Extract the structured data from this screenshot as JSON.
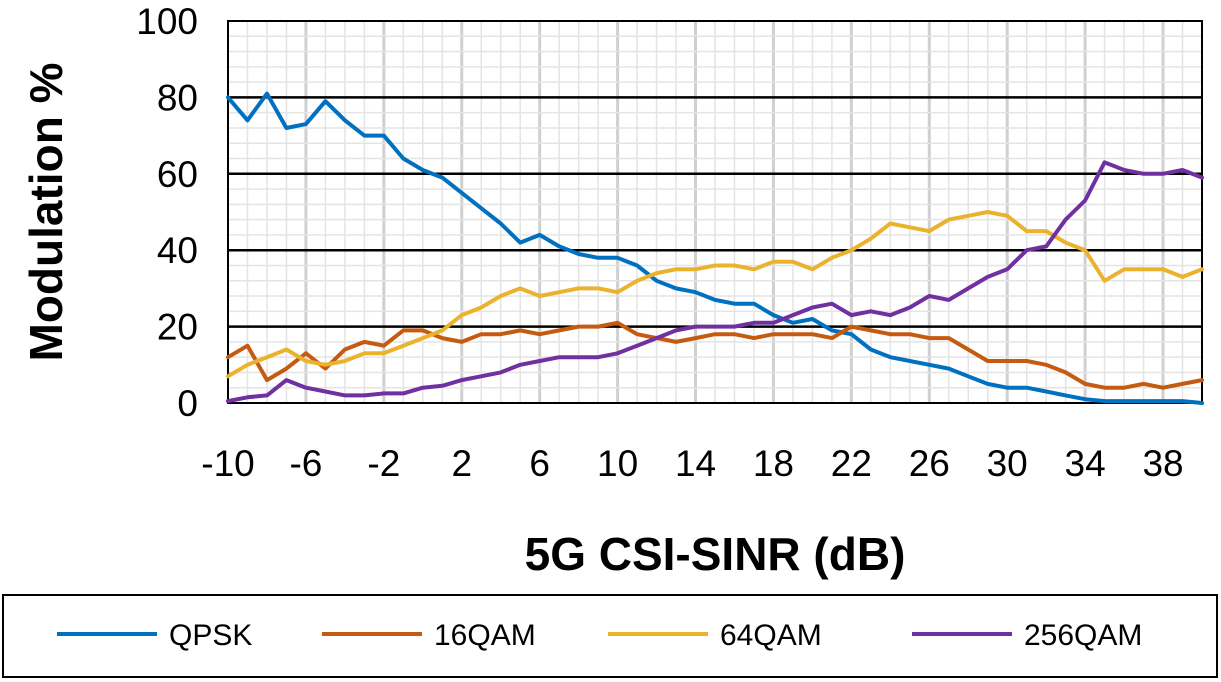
{
  "chart_data": {
    "type": "line",
    "title": "",
    "xlabel": "5G CSI-SINR (dB)",
    "ylabel": "Modulation %",
    "xlim": [
      -10,
      40
    ],
    "ylim": [
      0,
      100
    ],
    "x_ticks": [
      -10,
      -6,
      -2,
      2,
      6,
      10,
      14,
      18,
      22,
      26,
      30,
      34,
      38
    ],
    "x_tick_labels": [
      "-10",
      "-6",
      "-2",
      "2",
      "6",
      "10",
      "14",
      "18",
      "22",
      "26",
      "30",
      "34",
      "38"
    ],
    "y_ticks": [
      0,
      20,
      40,
      60,
      80,
      100
    ],
    "y_tick_labels": [
      "0",
      "20",
      "40",
      "60",
      "80",
      "100"
    ],
    "grid": {
      "major_y": true,
      "minor": true
    },
    "legend_position": "bottom",
    "x": [
      -10,
      -9,
      -8,
      -7,
      -6,
      -5,
      -4,
      -3,
      -2,
      -1,
      0,
      1,
      2,
      3,
      4,
      5,
      6,
      7,
      8,
      9,
      10,
      11,
      12,
      13,
      14,
      15,
      16,
      17,
      18,
      19,
      20,
      21,
      22,
      23,
      24,
      25,
      26,
      27,
      28,
      29,
      30,
      31,
      32,
      33,
      34,
      35,
      36,
      37,
      38,
      39,
      40
    ],
    "series": [
      {
        "name": "QPSK",
        "color": "#0070C0",
        "values": [
          80,
          74,
          81,
          72,
          73,
          79,
          74,
          70,
          70,
          64,
          61,
          59,
          55,
          51,
          47,
          42,
          44,
          41,
          39,
          38,
          38,
          36,
          32,
          30,
          29,
          27,
          26,
          26,
          23,
          21,
          22,
          19,
          18,
          14,
          12,
          11,
          10,
          9,
          7,
          5,
          4,
          4,
          3,
          2,
          1,
          0.5,
          0.5,
          0.5,
          0.5,
          0.5,
          0
        ]
      },
      {
        "name": "16QAM",
        "color": "#C55A11",
        "values": [
          12,
          15,
          6,
          9,
          13,
          9,
          14,
          16,
          15,
          19,
          19,
          17,
          16,
          18,
          18,
          19,
          18,
          19,
          20,
          20,
          21,
          18,
          17,
          16,
          17,
          18,
          18,
          17,
          18,
          18,
          18,
          17,
          20,
          19,
          18,
          18,
          17,
          17,
          14,
          11,
          11,
          11,
          10,
          8,
          5,
          4,
          4,
          5,
          4,
          5,
          6
        ]
      },
      {
        "name": "64QAM",
        "color": "#EBB22E",
        "values": [
          7,
          10,
          12,
          14,
          11,
          10,
          11,
          13,
          13,
          15,
          17,
          19,
          23,
          25,
          28,
          30,
          28,
          29,
          30,
          30,
          29,
          32,
          34,
          35,
          35,
          36,
          36,
          35,
          37,
          37,
          35,
          38,
          40,
          43,
          47,
          46,
          45,
          48,
          49,
          50,
          49,
          45,
          45,
          42,
          40,
          32,
          35,
          35,
          35,
          33,
          35
        ]
      },
      {
        "name": "256QAM",
        "color": "#7030A0",
        "values": [
          0.5,
          1.5,
          2,
          6,
          4,
          3,
          2,
          2,
          2.5,
          2.5,
          4,
          4.5,
          6,
          7,
          8,
          10,
          11,
          12,
          12,
          12,
          13,
          15,
          17,
          19,
          20,
          20,
          20,
          21,
          21,
          23,
          25,
          26,
          23,
          24,
          23,
          25,
          28,
          27,
          30,
          33,
          35,
          40,
          41,
          48,
          53,
          63,
          61,
          60,
          60,
          61,
          59
        ]
      }
    ]
  }
}
